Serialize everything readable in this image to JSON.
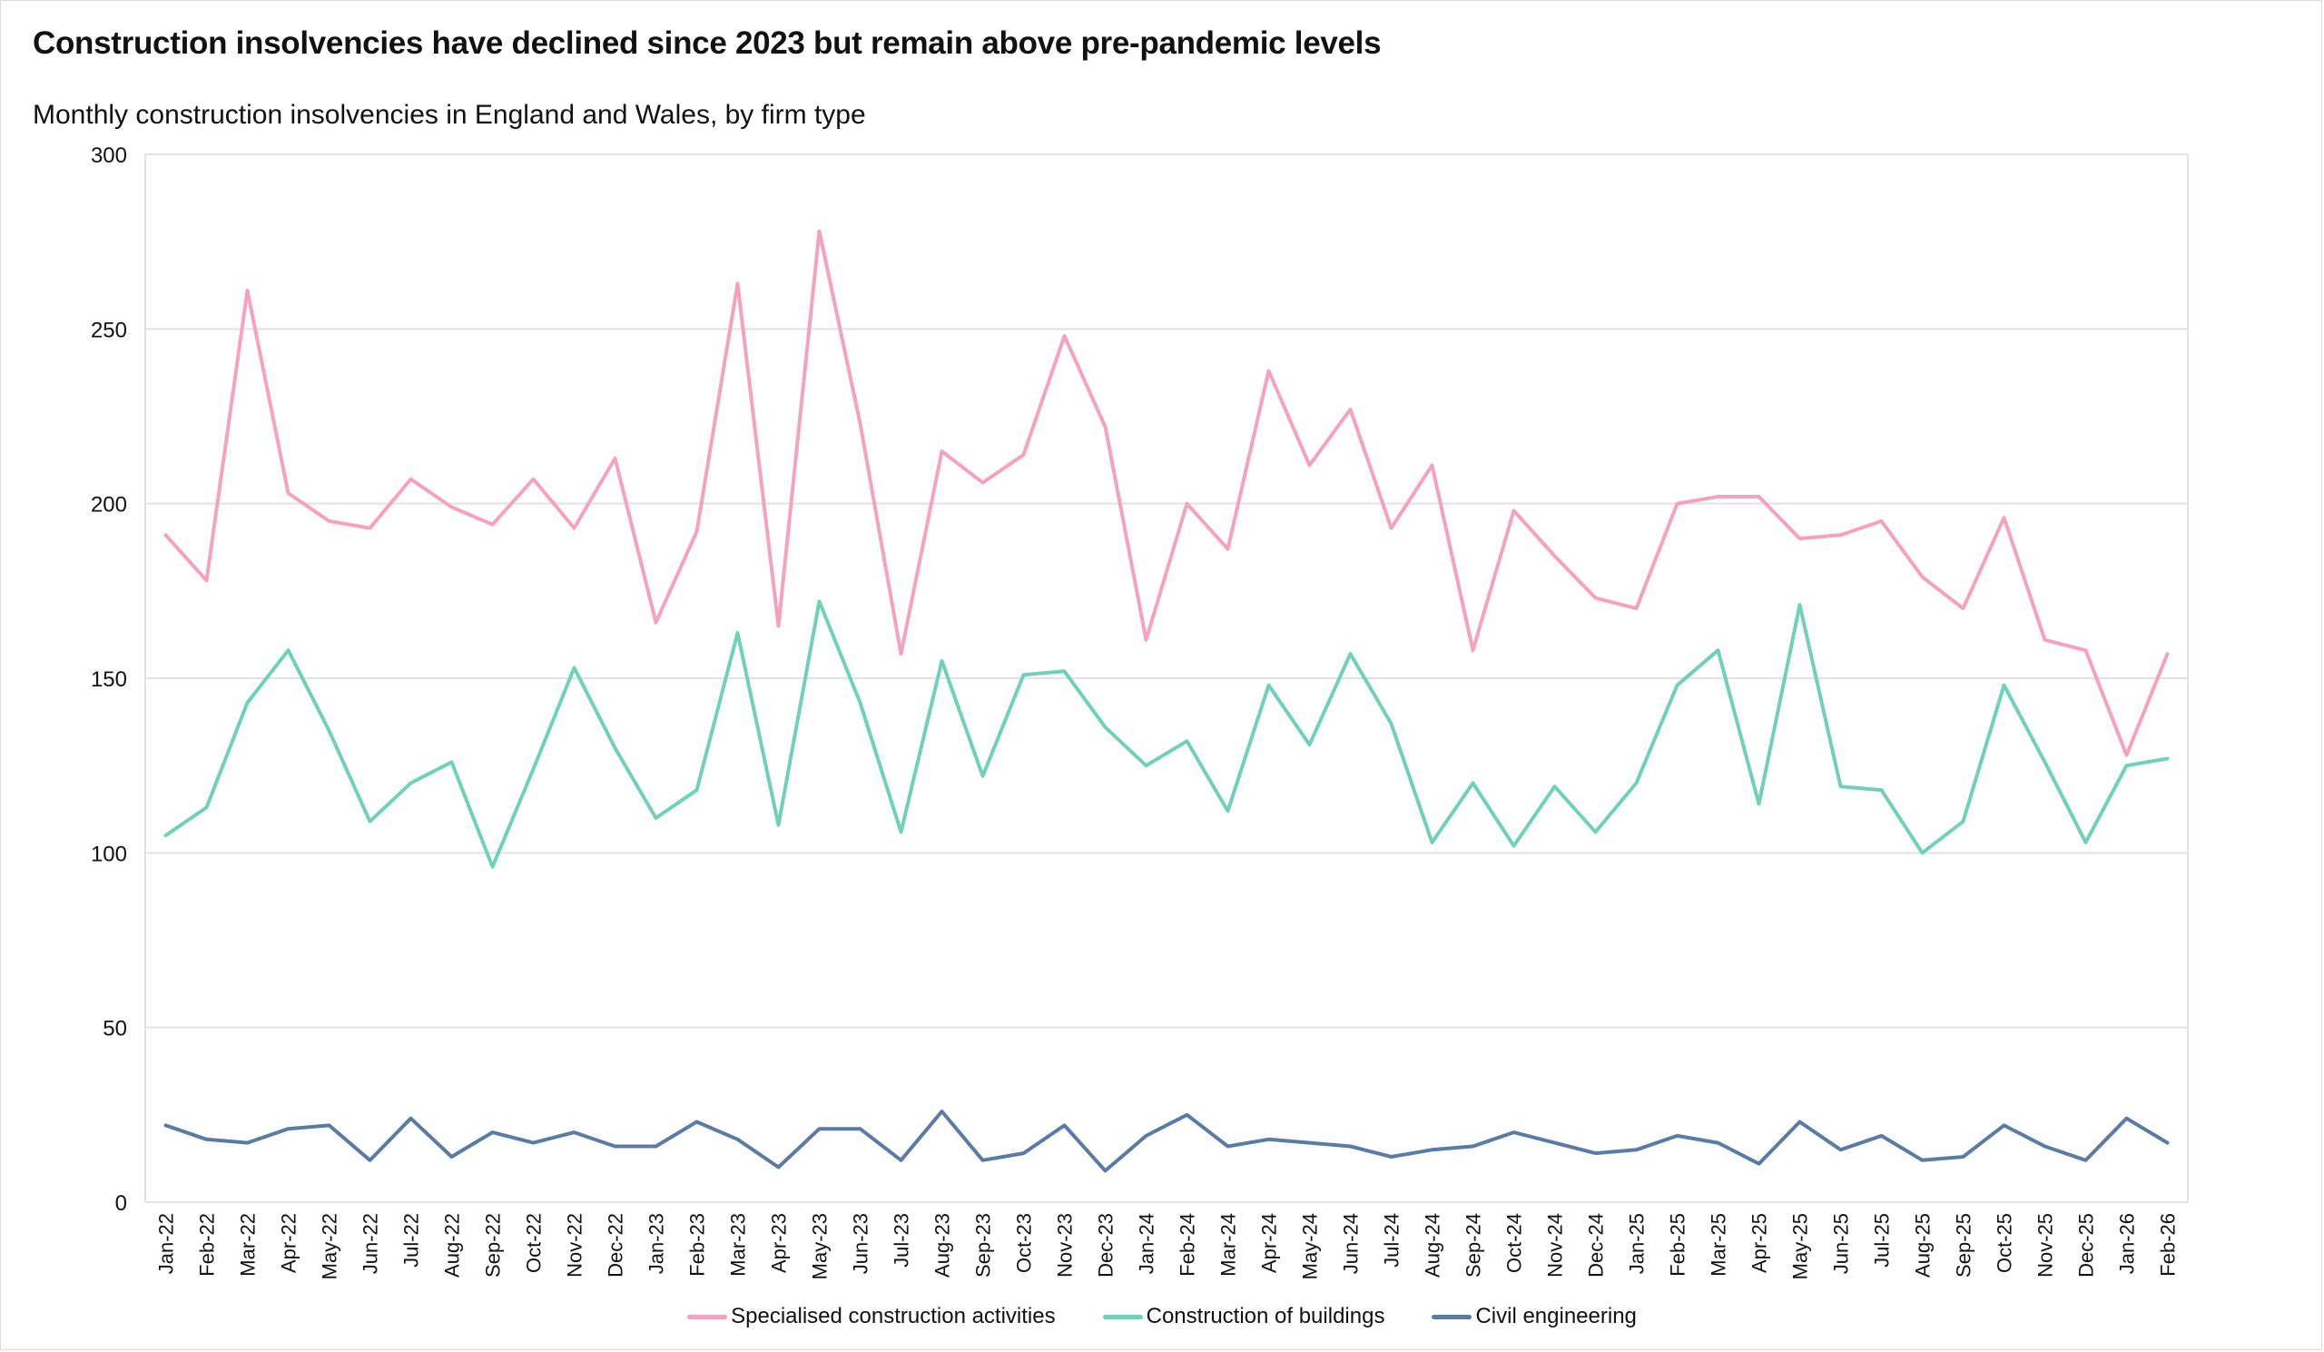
{
  "chart_data": {
    "type": "line",
    "title": "Construction insolvencies have declined since 2023 but remain above pre-pandemic levels",
    "subtitle": "Monthly construction insolvencies in England and Wales, by firm type",
    "xlabel": "",
    "ylabel": "",
    "ylim": [
      0,
      300
    ],
    "yticks": [
      "0",
      "50",
      "100",
      "150",
      "200",
      "250",
      "300"
    ],
    "grid": true,
    "legend_position": "bottom",
    "categories": [
      "Jan-22",
      "Feb-22",
      "Mar-22",
      "Apr-22",
      "May-22",
      "Jun-22",
      "Jul-22",
      "Aug-22",
      "Sep-22",
      "Oct-22",
      "Nov-22",
      "Dec-22",
      "Jan-23",
      "Feb-23",
      "Mar-23",
      "Apr-23",
      "May-23",
      "Jun-23",
      "Jul-23",
      "Aug-23",
      "Sep-23",
      "Oct-23",
      "Nov-23",
      "Dec-23",
      "Jan-24",
      "Feb-24",
      "Mar-24",
      "Apr-24",
      "May-24",
      "Jun-24",
      "Jul-24",
      "Aug-24",
      "Sep-24",
      "Oct-24",
      "Nov-24",
      "Dec-24",
      "Jan-25",
      "Feb-25",
      "Mar-25",
      "Apr-25",
      "May-25",
      "Jun-25",
      "Jul-25",
      "Aug-25",
      "Sep-25",
      "Oct-25",
      "Nov-25",
      "Dec-25",
      "Jan-26",
      "Feb-26"
    ],
    "series": [
      {
        "name": "Specialised construction activities",
        "color": "#f7a1c0",
        "values": [
          191,
          178,
          261,
          203,
          195,
          193,
          207,
          199,
          194,
          207,
          193,
          213,
          166,
          192,
          263,
          165,
          278,
          223,
          157,
          215,
          206,
          214,
          248,
          222,
          161,
          200,
          187,
          238,
          211,
          227,
          193,
          211,
          158,
          198,
          185,
          173,
          170,
          200,
          202,
          202,
          190,
          191,
          195,
          179,
          170,
          196,
          161,
          158,
          128,
          157
        ]
      },
      {
        "name": "Construction of buildings",
        "color": "#70d1ba",
        "values": [
          105,
          113,
          143,
          158,
          135,
          109,
          120,
          126,
          96,
          124,
          153,
          130,
          110,
          118,
          163,
          108,
          172,
          143,
          106,
          155,
          122,
          151,
          152,
          136,
          125,
          132,
          112,
          148,
          131,
          157,
          137,
          103,
          120,
          102,
          119,
          106,
          120,
          148,
          158,
          114,
          171,
          119,
          118,
          100,
          109,
          148,
          126,
          103,
          125,
          127
        ]
      },
      {
        "name": "Civil engineering",
        "color": "#5b7ba5",
        "values": [
          22,
          18,
          17,
          21,
          22,
          12,
          24,
          13,
          20,
          17,
          20,
          16,
          16,
          23,
          18,
          10,
          21,
          21,
          12,
          26,
          12,
          14,
          22,
          9,
          19,
          25,
          16,
          18,
          17,
          16,
          13,
          15,
          16,
          20,
          17,
          14,
          15,
          19,
          17,
          11,
          23,
          15,
          19,
          12,
          13,
          22,
          16,
          12,
          24,
          17
        ]
      }
    ]
  }
}
